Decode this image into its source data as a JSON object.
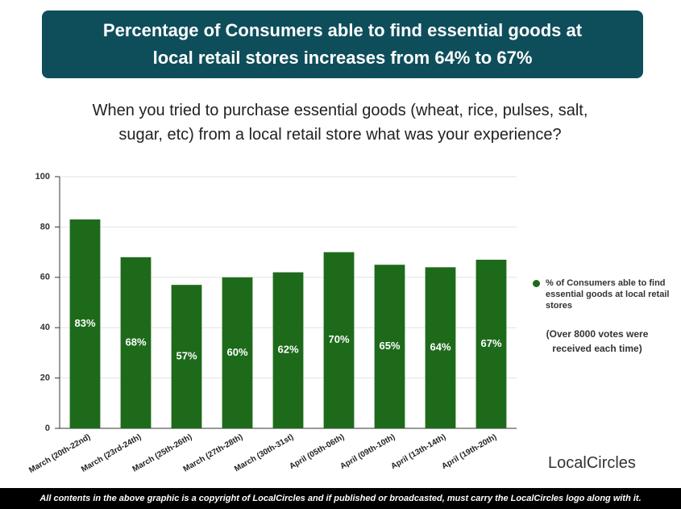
{
  "header": {
    "title": "Percentage of Consumers able to find essential goods at local retail stores increases from 64% to 67%"
  },
  "chart_data": {
    "type": "bar",
    "subtitle": "When you tried to purchase essential goods (wheat, rice, pulses, salt, sugar, etc) from a local retail store what was your experience?",
    "categories": [
      "March (20th-22nd)",
      "March (23rd-24th)",
      "March (25th-26th)",
      "March (27th-28th)",
      "March (30th-31st)",
      "April (05th-06th)",
      "April (09th-10th)",
      "April (13th-14th)",
      "April (19th-20th)"
    ],
    "series": [
      {
        "name": "% of Consumers able to find essential goods at local retail stores",
        "color": "#1e6a1b",
        "values": [
          83,
          68,
          57,
          60,
          62,
          70,
          65,
          64,
          67
        ],
        "value_labels": [
          "83%",
          "68%",
          "57%",
          "60%",
          "62%",
          "70%",
          "65%",
          "64%",
          "67%"
        ]
      }
    ],
    "ylim": [
      0,
      100
    ],
    "yticks": [
      0,
      20,
      40,
      60,
      80,
      100
    ],
    "grid": true,
    "legend": "right",
    "annotation": "(Over 8000 votes were received each time)"
  },
  "logo": "LocalCircles",
  "footer": "All contents in the above graphic is a copyright of LocalCircles and if published or broadcasted, must carry the LocalCircles logo along with it."
}
